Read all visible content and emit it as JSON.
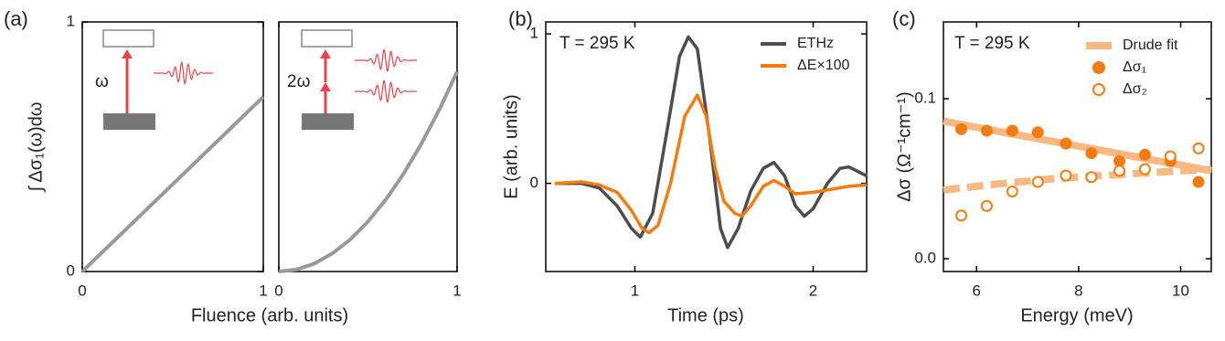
{
  "chart_data": [
    {
      "type": "line",
      "panel_label": "(a)",
      "xlabel": "Fluence (arb. units)",
      "ylabel": "∫ Δσ₁(ω)dω",
      "annotation": "ω",
      "xlim": [
        0,
        1
      ],
      "ylim": [
        0,
        1
      ],
      "xticks": [
        0,
        1
      ],
      "yticks": [
        0,
        1
      ],
      "series": [
        {
          "color": "#999999",
          "x": [
            0,
            1
          ],
          "values": [
            0,
            0.7
          ]
        }
      ]
    },
    {
      "type": "line",
      "annotation": "2ω",
      "xlim": [
        0,
        1
      ],
      "ylim": [
        0,
        1
      ],
      "xticks": [
        0,
        1
      ],
      "series": [
        {
          "color": "#999999",
          "x": [
            0,
            0.1,
            0.2,
            0.3,
            0.4,
            0.5,
            0.6,
            0.7,
            0.8,
            0.9,
            1
          ],
          "values": [
            0,
            0.008,
            0.032,
            0.072,
            0.128,
            0.2,
            0.288,
            0.392,
            0.512,
            0.648,
            0.8
          ]
        }
      ]
    },
    {
      "type": "line",
      "panel_label": "(b)",
      "xlabel": "Time (ps)",
      "ylabel": "E (arb. units)",
      "annotation": "T = 295 K",
      "xlim": [
        0.5,
        2.3
      ],
      "ylim": [
        -0.59,
        1.08
      ],
      "xticks": [
        1,
        2
      ],
      "yticks": [
        0,
        1
      ],
      "series": [
        {
          "name": "ETHz",
          "color": "#4d4d4d",
          "x": [
            0.55,
            0.7,
            0.8,
            0.9,
            0.98,
            1.03,
            1.1,
            1.18,
            1.25,
            1.3,
            1.35,
            1.42,
            1.48,
            1.52,
            1.58,
            1.65,
            1.72,
            1.78,
            1.84,
            1.9,
            1.95,
            2.0,
            2.08,
            2.15,
            2.2,
            2.25,
            2.3
          ],
          "values": [
            0,
            0,
            -0.03,
            -0.15,
            -0.3,
            -0.36,
            -0.2,
            0.35,
            0.85,
            0.98,
            0.9,
            0.3,
            -0.3,
            -0.43,
            -0.3,
            -0.05,
            0.1,
            0.14,
            0.05,
            -0.15,
            -0.22,
            -0.17,
            0,
            0.1,
            0.11,
            0.08,
            0.05
          ]
        },
        {
          "name": "ΔE×100",
          "color": "#f47b10",
          "x": [
            0.55,
            0.7,
            0.8,
            0.9,
            0.98,
            1.04,
            1.08,
            1.13,
            1.2,
            1.28,
            1.35,
            1.4,
            1.45,
            1.5,
            1.56,
            1.6,
            1.65,
            1.72,
            1.78,
            1.84,
            1.9,
            2.0,
            2.1,
            2.2,
            2.3
          ],
          "values": [
            0,
            0.01,
            -0.01,
            -0.06,
            -0.18,
            -0.3,
            -0.33,
            -0.28,
            0,
            0.45,
            0.59,
            0.45,
            0.1,
            -0.12,
            -0.2,
            -0.22,
            -0.15,
            -0.02,
            0.02,
            -0.02,
            -0.07,
            -0.06,
            -0.04,
            -0.02,
            -0.01
          ]
        }
      ]
    },
    {
      "type": "scatter",
      "panel_label": "(c)",
      "xlabel": "Energy (meV)",
      "ylabel": "Δσ (Ω⁻¹cm⁻¹)",
      "annotation": "T = 295 K",
      "xlim": [
        5.35,
        10.6
      ],
      "ylim": [
        -0.008,
        0.148
      ],
      "xticks": [
        6,
        8,
        10
      ],
      "yticks": [
        {
          "value": 0,
          "label": "0.0"
        },
        {
          "value": 0.1,
          "label": "0.1"
        }
      ],
      "series": [
        {
          "name": "Drude fit",
          "color": "#f8b882",
          "x": [
            5.35,
            10.6
          ],
          "values": [
            0.086,
            0.055
          ]
        },
        {
          "color": "#f8b882",
          "dashed": true,
          "x": [
            5.35,
            6.5,
            7.5,
            8.5,
            9.5,
            10.6
          ],
          "values": [
            0.043,
            0.047,
            0.05,
            0.052,
            0.054,
            0.056
          ]
        },
        {
          "name": "Δσ₁",
          "color": "#f47b10",
          "marker": "filled",
          "x": [
            5.7,
            6.2,
            6.7,
            7.2,
            7.75,
            8.25,
            8.8,
            9.3,
            9.8,
            10.35
          ],
          "values": [
            0.081,
            0.08,
            0.08,
            0.079,
            0.072,
            0.066,
            0.061,
            0.065,
            0.061,
            0.048
          ]
        },
        {
          "name": "Δσ₂",
          "color": "#f47b10",
          "marker": "open",
          "x": [
            5.7,
            6.2,
            6.7,
            7.2,
            7.75,
            8.25,
            8.8,
            9.3,
            9.8,
            10.35
          ],
          "values": [
            0.027,
            0.033,
            0.042,
            0.048,
            0.052,
            0.051,
            0.055,
            0.056,
            0.064,
            0.069
          ]
        }
      ]
    }
  ]
}
